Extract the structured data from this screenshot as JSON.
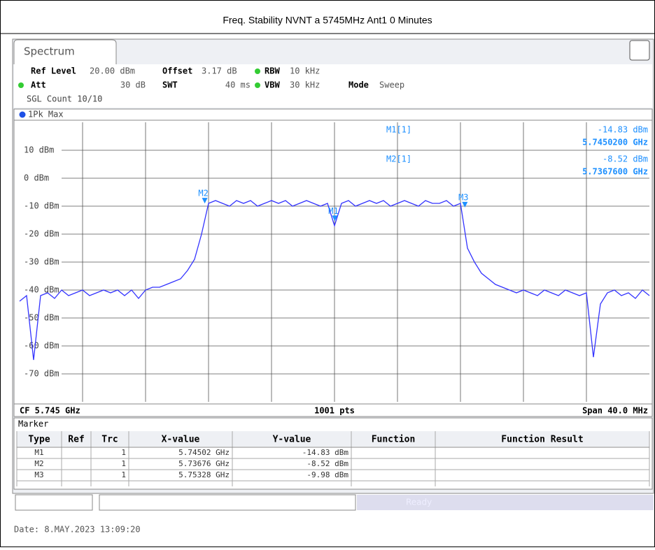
{
  "title": "Freq. Stability NVNT a 5745MHz Ant1 0 Minutes",
  "tab": "Spectrum",
  "settings": {
    "ref_level_label": "Ref Level",
    "ref_level": "20.00 dBm",
    "offset_label": "Offset",
    "offset": "3.17 dB",
    "rbw_label": "RBW",
    "rbw": "10 kHz",
    "att_label": "Att",
    "att": "30 dB",
    "swt_label": "SWT",
    "swt": "40 ms",
    "vbw_label": "VBW",
    "vbw": "30 kHz",
    "mode_label": "Mode",
    "mode": "Sweep",
    "sgl": "SGL Count 10/10"
  },
  "trace_label": "1Pk Max",
  "chart_data": {
    "type": "line",
    "xlim": [
      5.725,
      5.765
    ],
    "ylim": [
      -80,
      20
    ],
    "yticks": [
      {
        "value": 10,
        "label": "10 dBm"
      },
      {
        "value": 0,
        "label": "0 dBm"
      },
      {
        "value": -10,
        "label": "-10 dBm"
      },
      {
        "value": -20,
        "label": "-20 dBm"
      },
      {
        "value": -30,
        "label": "-30 dBm"
      },
      {
        "value": -40,
        "label": "-40 dBm"
      },
      {
        "value": -50,
        "label": "-50 dBm"
      },
      {
        "value": -60,
        "label": "-60 dBm"
      },
      {
        "value": -70,
        "label": "-70 dBm"
      }
    ],
    "grid": true,
    "color": "#3333ff",
    "values": [
      -44,
      -42,
      -65,
      -42,
      -41,
      -43,
      -40,
      -42,
      -41,
      -40,
      -42,
      -41,
      -40,
      -41,
      -40,
      -42,
      -40,
      -43,
      -40,
      -39,
      -39,
      -38,
      -37,
      -36,
      -33,
      -29,
      -20,
      -9,
      -8,
      -9,
      -10,
      -8,
      -9,
      -8,
      -10,
      -9,
      -8,
      -9,
      -8,
      -10,
      -9,
      -8,
      -9,
      -10,
      -9,
      -17,
      -9,
      -8,
      -10,
      -9,
      -8,
      -9,
      -8,
      -10,
      -9,
      -8,
      -9,
      -10,
      -8,
      -9,
      -9,
      -8,
      -10,
      -9,
      -25,
      -30,
      -34,
      -36,
      -38,
      -39,
      -40,
      -41,
      -40,
      -41,
      -42,
      -40,
      -41,
      -42,
      -40,
      -41,
      -42,
      -41,
      -64,
      -45,
      -41,
      -40,
      -42,
      -41,
      -43,
      -40,
      -42
    ],
    "markers": [
      {
        "name": "M1",
        "x": 5.74502,
        "y": -14.83
      },
      {
        "name": "M2",
        "x": 5.73676,
        "y": -8.52
      },
      {
        "name": "M3",
        "x": 5.75328,
        "y": -9.98
      }
    ],
    "readout": [
      {
        "name": "M1[1]",
        "level": "-14.83 dBm",
        "freq": "5.7450200 GHz"
      },
      {
        "name": "M2[1]",
        "level": "-8.52 dBm",
        "freq": "5.7367600 GHz"
      }
    ],
    "footer": {
      "cf": "CF 5.745 GHz",
      "pts": "1001 pts",
      "span": "Span 40.0 MHz"
    }
  },
  "marker_table": {
    "title": "Marker",
    "header": [
      "Type",
      "Ref",
      "Trc",
      "X-value",
      "Y-value",
      "Function",
      "Function Result"
    ],
    "rows": [
      [
        "M1",
        "",
        "1",
        "5.74502 GHz",
        "-14.83 dBm",
        "",
        ""
      ],
      [
        "M2",
        "",
        "1",
        "5.73676 GHz",
        "-8.52 dBm",
        "",
        ""
      ],
      [
        "M3",
        "",
        "1",
        "5.75328 GHz",
        "-9.98 dBm",
        "",
        ""
      ]
    ]
  },
  "status": "Ready",
  "date": "Date: 8.MAY.2023  13:09:20"
}
